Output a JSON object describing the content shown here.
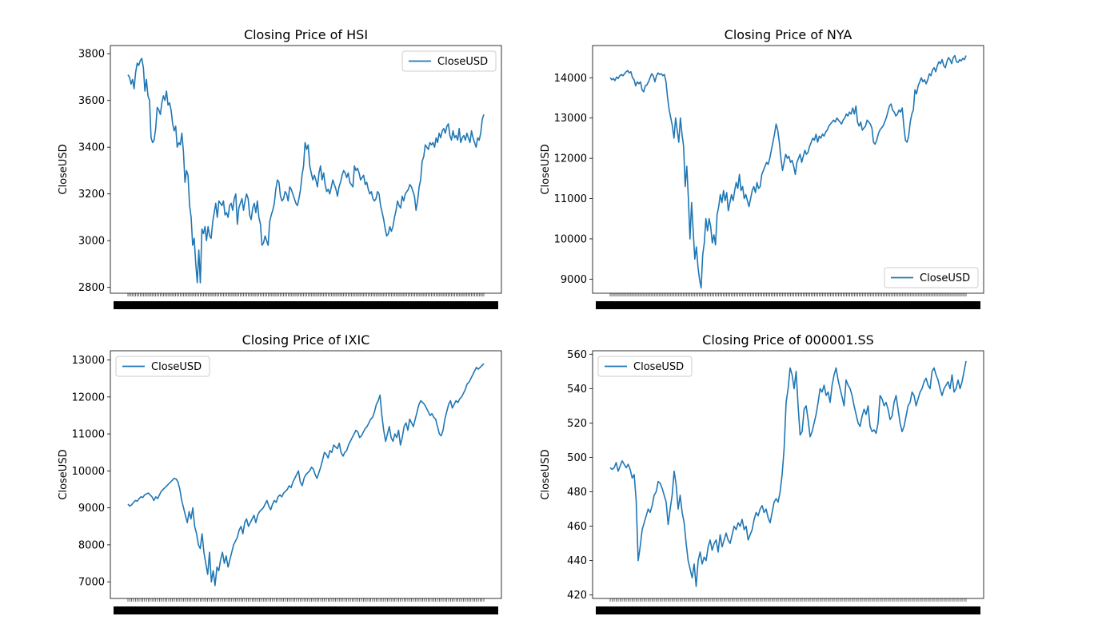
{
  "chart_data": [
    {
      "type": "line",
      "title": "Closing Price of HSI",
      "xlabel": "",
      "ylabel": "CloseUSD",
      "ylim": [
        2775,
        3835
      ],
      "yticks": [
        2800,
        3000,
        3200,
        3400,
        3600,
        3800
      ],
      "legend": "upper-right",
      "grid": false,
      "series": [
        {
          "name": "CloseUSD",
          "color": "#1f77b4",
          "y": [
            3710,
            3700,
            3670,
            3690,
            3650,
            3720,
            3760,
            3750,
            3770,
            3780,
            3740,
            3640,
            3690,
            3620,
            3600,
            3440,
            3420,
            3430,
            3480,
            3570,
            3560,
            3540,
            3590,
            3620,
            3600,
            3640,
            3580,
            3590,
            3560,
            3500,
            3470,
            3490,
            3400,
            3420,
            3410,
            3460,
            3380,
            3250,
            3300,
            3280,
            3150,
            3100,
            2980,
            3010,
            2900,
            2820,
            2960,
            2820,
            3050,
            3030,
            3060,
            3000,
            3060,
            3020,
            3010,
            3080,
            3120,
            3160,
            3100,
            3170,
            3160,
            3150,
            3170,
            3110,
            3120,
            3100,
            3150,
            3160,
            3130,
            3180,
            3200,
            3070,
            3140,
            3160,
            3180,
            3130,
            3170,
            3200,
            3180,
            3110,
            3090,
            3140,
            3160,
            3120,
            3170,
            3100,
            3070,
            2980,
            2990,
            3020,
            3000,
            2980,
            3080,
            3110,
            3130,
            3160,
            3220,
            3260,
            3250,
            3190,
            3170,
            3180,
            3210,
            3200,
            3170,
            3230,
            3220,
            3200,
            3180,
            3160,
            3150,
            3180,
            3220,
            3280,
            3320,
            3420,
            3390,
            3410,
            3320,
            3290,
            3260,
            3280,
            3260,
            3230,
            3290,
            3320,
            3260,
            3290,
            3240,
            3210,
            3220,
            3200,
            3230,
            3260,
            3240,
            3220,
            3190,
            3230,
            3250,
            3280,
            3300,
            3290,
            3270,
            3290,
            3250,
            3240,
            3230,
            3320,
            3300,
            3310,
            3290,
            3260,
            3270,
            3280,
            3240,
            3250,
            3220,
            3200,
            3210,
            3180,
            3170,
            3180,
            3210,
            3200,
            3150,
            3120,
            3090,
            3050,
            3020,
            3030,
            3060,
            3040,
            3060,
            3100,
            3130,
            3170,
            3150,
            3140,
            3190,
            3170,
            3200,
            3210,
            3220,
            3240,
            3230,
            3210,
            3190,
            3130,
            3170,
            3230,
            3260,
            3340,
            3360,
            3410,
            3400,
            3390,
            3420,
            3410,
            3420,
            3400,
            3440,
            3420,
            3460,
            3440,
            3470,
            3480,
            3460,
            3490,
            3500,
            3450,
            3430,
            3470,
            3440,
            3450,
            3430,
            3480,
            3420,
            3440,
            3450,
            3430,
            3460,
            3440,
            3420,
            3470,
            3440,
            3420,
            3400,
            3440,
            3430,
            3460,
            3520,
            3540
          ]
        }
      ]
    },
    {
      "type": "line",
      "title": "Closing Price of NYA",
      "xlabel": "",
      "ylabel": "CloseUSD",
      "ylim": [
        8650,
        14800
      ],
      "yticks": [
        9000,
        10000,
        11000,
        12000,
        13000,
        14000
      ],
      "legend": "lower-right",
      "grid": false,
      "series": [
        {
          "name": "CloseUSD",
          "color": "#1f77b4",
          "y": [
            14000,
            13950,
            13980,
            13930,
            14020,
            13980,
            14050,
            14080,
            14050,
            14100,
            14150,
            14180,
            14120,
            14150,
            14000,
            13950,
            13800,
            13900,
            13850,
            13900,
            13700,
            13650,
            13800,
            13820,
            13900,
            14000,
            14100,
            14050,
            13900,
            14050,
            14120,
            14080,
            14100,
            14050,
            14080,
            13900,
            13500,
            13200,
            13000,
            12800,
            12500,
            13000,
            12700,
            12400,
            13000,
            12600,
            12300,
            11300,
            11800,
            11000,
            10000,
            10900,
            10200,
            9500,
            9800,
            9300,
            9000,
            8780,
            9600,
            9900,
            10500,
            10200,
            10500,
            10300,
            9900,
            10100,
            9850,
            10600,
            10800,
            11100,
            10900,
            11200,
            10950,
            11150,
            10700,
            10900,
            11100,
            10950,
            11200,
            11400,
            11250,
            11600,
            11200,
            11300,
            11000,
            11100,
            10950,
            10800,
            11000,
            11200,
            11300,
            11150,
            11400,
            11250,
            11300,
            11600,
            11700,
            11800,
            11900,
            11850,
            12000,
            12200,
            12400,
            12600,
            12850,
            12700,
            12400,
            12000,
            11700,
            11900,
            12100,
            12000,
            12050,
            11900,
            11950,
            11800,
            11600,
            11900,
            12000,
            12100,
            11900,
            12050,
            12200,
            12100,
            12150,
            12300,
            12400,
            12500,
            12450,
            12600,
            12400,
            12550,
            12500,
            12600,
            12550,
            12650,
            12700,
            12800,
            12850,
            12900,
            12950,
            12900,
            13000,
            12950,
            12900,
            12850,
            12950,
            13000,
            13100,
            13050,
            13150,
            13100,
            13250,
            13100,
            13300,
            12900,
            12800,
            12900,
            12700,
            12750,
            12800,
            12950,
            12900,
            12850,
            12750,
            12400,
            12350,
            12450,
            12600,
            12700,
            12750,
            12800,
            12900,
            13000,
            13150,
            13300,
            13350,
            13200,
            13150,
            13050,
            13100,
            13200,
            13150,
            13250,
            12800,
            12450,
            12400,
            12550,
            12900,
            13100,
            13200,
            13700,
            13600,
            13800,
            13900,
            14000,
            13900,
            13950,
            13850,
            13950,
            14100,
            14050,
            14200,
            14250,
            14150,
            14300,
            14400,
            14350,
            14450,
            14300,
            14250,
            14400,
            14500,
            14450,
            14350,
            14500,
            14550,
            14400,
            14380,
            14450,
            14420,
            14480,
            14450,
            14550
          ]
        }
      ]
    },
    {
      "type": "line",
      "title": "Closing Price of IXIC",
      "xlabel": "",
      "ylabel": "CloseUSD",
      "ylim": [
        6550,
        13250
      ],
      "yticks": [
        7000,
        8000,
        9000,
        10000,
        11000,
        12000,
        13000
      ],
      "legend": "upper-left",
      "grid": false,
      "series": [
        {
          "name": "CloseUSD",
          "color": "#1f77b4",
          "y": [
            9100,
            9050,
            9080,
            9150,
            9200,
            9180,
            9250,
            9300,
            9280,
            9350,
            9380,
            9400,
            9350,
            9300,
            9200,
            9300,
            9250,
            9350,
            9450,
            9500,
            9550,
            9600,
            9650,
            9700,
            9750,
            9800,
            9780,
            9700,
            9500,
            9200,
            9000,
            8800,
            8600,
            8900,
            8700,
            9000,
            8500,
            8300,
            8000,
            7900,
            8300,
            7800,
            7500,
            7200,
            7800,
            7000,
            7300,
            6900,
            7400,
            7300,
            7600,
            7800,
            7500,
            7700,
            7400,
            7600,
            7800,
            8000,
            8100,
            8200,
            8400,
            8500,
            8300,
            8600,
            8700,
            8500,
            8600,
            8700,
            8800,
            8600,
            8800,
            8900,
            8950,
            9000,
            9100,
            9200,
            9050,
            8950,
            9100,
            9200,
            9150,
            9300,
            9350,
            9300,
            9400,
            9450,
            9500,
            9600,
            9550,
            9700,
            9800,
            9900,
            10000,
            9700,
            9600,
            9800,
            9900,
            9950,
            10000,
            10100,
            10050,
            9900,
            9800,
            9950,
            10100,
            10300,
            10500,
            10450,
            10350,
            10550,
            10500,
            10700,
            10650,
            10600,
            10750,
            10500,
            10400,
            10500,
            10550,
            10700,
            10800,
            10900,
            11000,
            11100,
            11050,
            10900,
            10950,
            11050,
            11150,
            11200,
            11300,
            11400,
            11450,
            11600,
            11800,
            11900,
            12050,
            11500,
            11100,
            10800,
            11000,
            11200,
            10900,
            10800,
            11000,
            10900,
            11100,
            10700,
            10900,
            11200,
            11300,
            11100,
            11400,
            11300,
            11200,
            11400,
            11600,
            11800,
            11900,
            11850,
            11800,
            11700,
            11600,
            11500,
            11550,
            11450,
            11400,
            11200,
            11000,
            10950,
            11100,
            11400,
            11600,
            11800,
            11900,
            11700,
            11800,
            11900,
            11850,
            11950,
            12000,
            12100,
            12200,
            12350,
            12400,
            12500,
            12600,
            12700,
            12800,
            12750,
            12800,
            12850,
            12900
          ]
        }
      ]
    },
    {
      "type": "line",
      "title": "Closing Price of 000001.SS",
      "xlabel": "",
      "ylabel": "CloseUSD",
      "ylim": [
        418,
        562
      ],
      "yticks": [
        420,
        440,
        460,
        480,
        500,
        520,
        540,
        560
      ],
      "legend": "upper-left",
      "grid": false,
      "series": [
        {
          "name": "CloseUSD",
          "color": "#1f77b4",
          "y": [
            494,
            493,
            494,
            497,
            492,
            495,
            498,
            496,
            494,
            496,
            493,
            488,
            490,
            475,
            440,
            448,
            458,
            462,
            466,
            470,
            468,
            472,
            478,
            480,
            486,
            485,
            482,
            478,
            474,
            461,
            470,
            478,
            492,
            484,
            470,
            478,
            468,
            462,
            450,
            440,
            435,
            430,
            438,
            425,
            440,
            445,
            438,
            442,
            440,
            448,
            452,
            446,
            450,
            452,
            445,
            455,
            448,
            452,
            456,
            452,
            450,
            455,
            460,
            458,
            462,
            460,
            464,
            458,
            460,
            452,
            455,
            458,
            464,
            468,
            466,
            470,
            472,
            468,
            470,
            465,
            462,
            468,
            474,
            476,
            474,
            480,
            490,
            505,
            532,
            540,
            552,
            548,
            540,
            550,
            530,
            513,
            515,
            528,
            530,
            522,
            512,
            515,
            520,
            525,
            532,
            540,
            538,
            542,
            536,
            538,
            532,
            542,
            548,
            552,
            545,
            540,
            535,
            530,
            545,
            542,
            540,
            536,
            530,
            525,
            520,
            518,
            524,
            528,
            525,
            530,
            518,
            515,
            516,
            514,
            520,
            536,
            534,
            530,
            532,
            528,
            522,
            524,
            532,
            536,
            528,
            520,
            515,
            518,
            524,
            530,
            532,
            538,
            536,
            530,
            534,
            538,
            540,
            544,
            546,
            542,
            540,
            550,
            552,
            548,
            545,
            540,
            536,
            540,
            542,
            544,
            540,
            548,
            538,
            540,
            545,
            540,
            544,
            550,
            556
          ]
        }
      ]
    }
  ]
}
